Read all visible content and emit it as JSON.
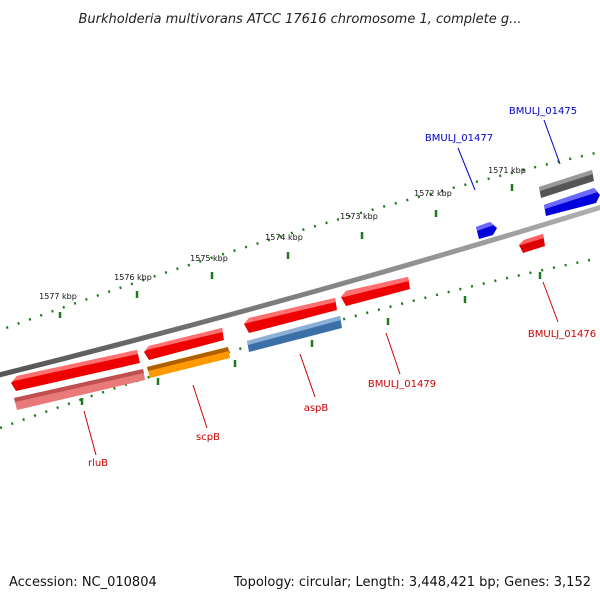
{
  "header": {
    "title": "Burkholderia multivorans ATCC 17616 chromosome 1, complete g..."
  },
  "footer": {
    "accession": "Accession: NC_010804",
    "summary": "Topology: circular; Length: 3,448,421 bp; Genes: 3,152"
  },
  "ruler": {
    "ticks": [
      "1577 kbp",
      "1576 kbp",
      "1575 kbp",
      "1574 kbp",
      "1573 kbp",
      "1572 kbp",
      "1571 kbp"
    ]
  },
  "genes": [
    {
      "id": "rluB",
      "label": "rluB",
      "color": "#cc0000"
    },
    {
      "id": "scpB",
      "label": "scpB",
      "color": "#cc0000"
    },
    {
      "id": "aspB",
      "label": "aspB",
      "color": "#cc0000"
    },
    {
      "id": "BMULJ_01479",
      "label": "BMULJ_01479",
      "color": "#cc0000"
    },
    {
      "id": "BMULJ_01476",
      "label": "BMULJ_01476",
      "color": "#cc0000"
    },
    {
      "id": "BMULJ_01477",
      "label": "BMULJ_01477",
      "color": "#0000cc"
    },
    {
      "id": "BMULJ_01475",
      "label": "BMULJ_01475",
      "color": "#0000cc"
    }
  ],
  "colors": {
    "backbone": "#888888",
    "ticks": "#1e7a1e",
    "cds_red": "#ee0000",
    "cds_blue": "#1010ee",
    "rna_pink": "#e87a7a",
    "orange": "#ff9900",
    "steel": "#4a80b8",
    "gray_feature": "#555555"
  }
}
